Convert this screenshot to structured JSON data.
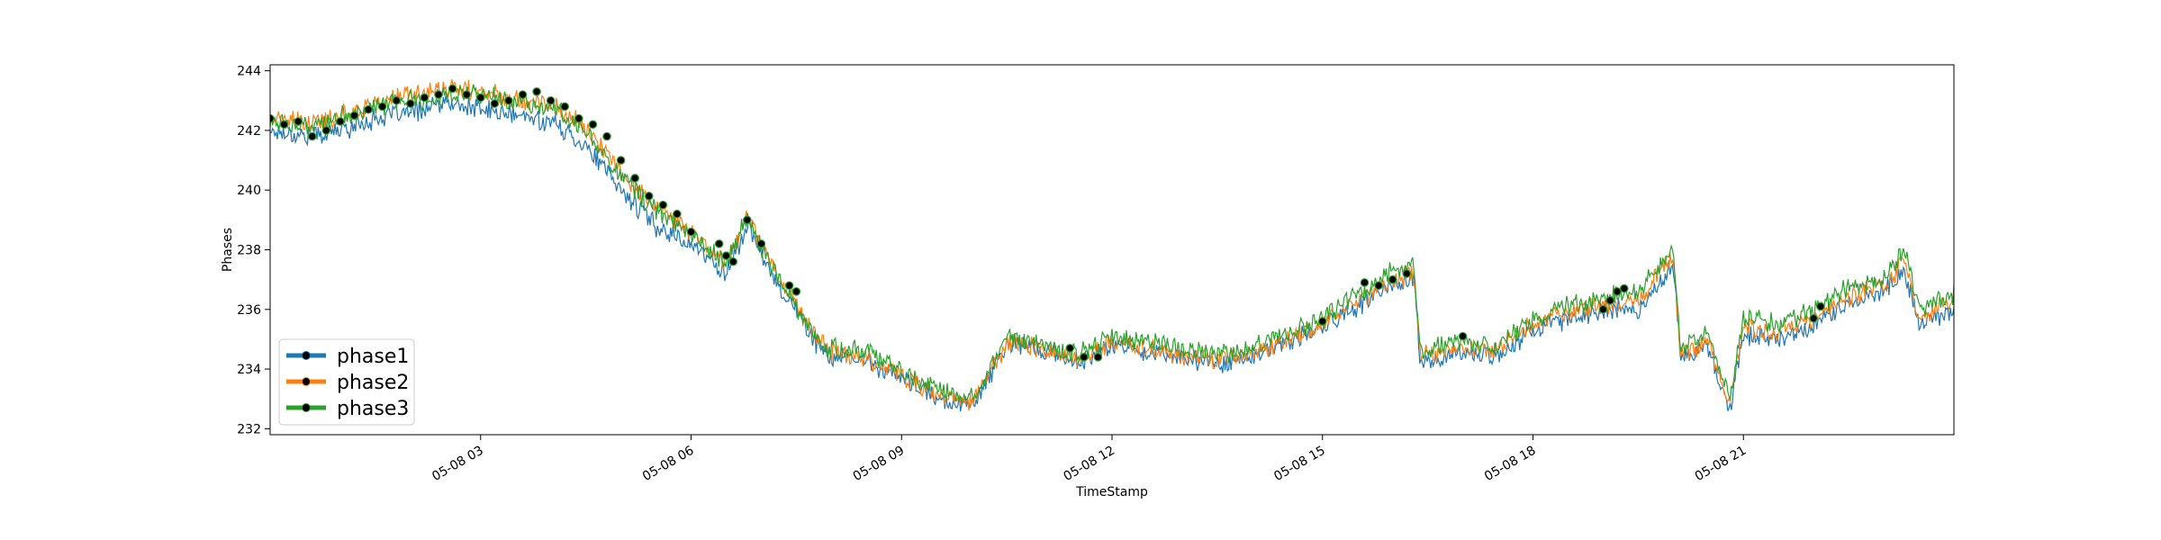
{
  "chart_data": {
    "type": "line",
    "title": "",
    "xlabel": "TimeStamp",
    "ylabel": "Phases",
    "x_start_hour": 0,
    "xlim": [
      0,
      24
    ],
    "ylim": [
      231.8,
      244.2
    ],
    "yticks": [
      232,
      234,
      236,
      238,
      240,
      242,
      244
    ],
    "xticks": [
      {
        "x": 3,
        "label": "05-08 03"
      },
      {
        "x": 6,
        "label": "05-08 06"
      },
      {
        "x": 9,
        "label": "05-08 09"
      },
      {
        "x": 12,
        "label": "05-08 12"
      },
      {
        "x": 15,
        "label": "05-08 15"
      },
      {
        "x": 18,
        "label": "05-08 18"
      },
      {
        "x": 21,
        "label": "05-08 21"
      }
    ],
    "x_units": "hours since 05-08 00:00",
    "legend_position": "lower left",
    "grid": false,
    "series": [
      {
        "name": "phase1",
        "color": "#1f77b4",
        "x": [
          0.0,
          0.3,
          0.6,
          1.0,
          1.5,
          2.0,
          2.5,
          3.0,
          3.5,
          4.0,
          4.5,
          5.0,
          5.5,
          6.0,
          6.5,
          6.8,
          7.0,
          7.3,
          7.5,
          7.8,
          8.0,
          8.5,
          9.0,
          9.5,
          10.0,
          10.5,
          10.6,
          11.0,
          11.5,
          11.8,
          12.0,
          12.5,
          13.0,
          13.5,
          14.0,
          14.5,
          15.0,
          15.5,
          16.0,
          16.3,
          16.4,
          17.0,
          17.5,
          18.0,
          18.5,
          19.0,
          19.5,
          20.0,
          20.1,
          20.5,
          20.8,
          21.0,
          21.5,
          22.0,
          22.5,
          23.0,
          23.3,
          23.5,
          24.0
        ],
        "y": [
          242.0,
          241.9,
          241.8,
          242.0,
          242.4,
          242.6,
          242.9,
          242.7,
          242.5,
          242.3,
          241.5,
          240.0,
          238.8,
          238.2,
          237.2,
          238.8,
          237.9,
          236.6,
          236.0,
          234.8,
          234.4,
          234.3,
          233.7,
          233.0,
          232.8,
          234.7,
          234.9,
          234.6,
          234.2,
          234.5,
          234.8,
          234.6,
          234.4,
          234.2,
          234.4,
          234.9,
          235.4,
          236.1,
          236.8,
          237.0,
          234.2,
          234.5,
          234.5,
          235.3,
          235.7,
          236.0,
          236.0,
          237.5,
          234.4,
          234.7,
          232.6,
          235.2,
          235.0,
          235.5,
          236.2,
          236.6,
          237.3,
          235.5,
          236.0
        ]
      },
      {
        "name": "phase2",
        "color": "#ff7f0e",
        "x": [
          0.0,
          0.3,
          0.6,
          1.0,
          1.5,
          2.0,
          2.5,
          3.0,
          3.5,
          4.0,
          4.5,
          5.0,
          5.5,
          6.0,
          6.5,
          6.8,
          7.0,
          7.3,
          7.5,
          7.8,
          8.0,
          8.5,
          9.0,
          9.5,
          10.0,
          10.5,
          10.6,
          11.0,
          11.5,
          11.8,
          12.0,
          12.5,
          13.0,
          13.5,
          14.0,
          14.5,
          15.0,
          15.5,
          16.0,
          16.3,
          16.4,
          17.0,
          17.5,
          18.0,
          18.5,
          19.0,
          19.5,
          20.0,
          20.1,
          20.5,
          20.8,
          21.0,
          21.5,
          22.0,
          22.5,
          23.0,
          23.3,
          23.5,
          24.0
        ],
        "y": [
          242.4,
          242.3,
          242.2,
          242.5,
          242.9,
          243.2,
          243.4,
          243.3,
          243.1,
          242.9,
          242.1,
          240.6,
          239.4,
          238.6,
          237.6,
          239.2,
          238.2,
          236.9,
          236.2,
          235.0,
          234.6,
          234.4,
          233.8,
          233.1,
          232.9,
          234.8,
          235.0,
          234.7,
          234.3,
          234.6,
          234.9,
          234.7,
          234.4,
          234.3,
          234.5,
          235.0,
          235.5,
          236.3,
          237.0,
          237.2,
          234.4,
          234.7,
          234.6,
          235.5,
          235.9,
          236.2,
          236.3,
          237.8,
          234.6,
          234.9,
          232.8,
          235.4,
          235.2,
          235.7,
          236.4,
          236.8,
          237.6,
          235.7,
          236.3
        ]
      },
      {
        "name": "phase3",
        "color": "#2ca02c",
        "x": [
          0.0,
          0.3,
          0.6,
          1.0,
          1.5,
          2.0,
          2.5,
          3.0,
          3.5,
          4.0,
          4.5,
          5.0,
          5.5,
          6.0,
          6.5,
          6.8,
          7.0,
          7.3,
          7.5,
          7.8,
          8.0,
          8.5,
          9.0,
          9.5,
          10.0,
          10.5,
          10.6,
          11.0,
          11.5,
          11.8,
          12.0,
          12.5,
          13.0,
          13.5,
          14.0,
          14.5,
          15.0,
          15.5,
          16.0,
          16.3,
          16.4,
          17.0,
          17.5,
          18.0,
          18.5,
          19.0,
          19.5,
          20.0,
          20.1,
          20.5,
          20.8,
          21.0,
          21.5,
          22.0,
          22.5,
          23.0,
          23.3,
          23.5,
          24.0
        ],
        "y": [
          242.3,
          242.2,
          242.1,
          242.4,
          242.8,
          243.0,
          243.2,
          243.2,
          243.0,
          242.8,
          242.0,
          240.5,
          239.3,
          238.5,
          237.5,
          239.1,
          238.1,
          236.8,
          236.1,
          234.9,
          234.7,
          234.6,
          234.0,
          233.3,
          233.1,
          235.0,
          235.1,
          234.9,
          234.5,
          234.8,
          235.1,
          234.9,
          234.7,
          234.5,
          234.7,
          235.2,
          235.7,
          236.5,
          237.3,
          237.6,
          234.6,
          234.9,
          234.8,
          235.7,
          236.1,
          236.4,
          236.6,
          238.0,
          234.8,
          235.1,
          233.0,
          235.7,
          235.5,
          236.0,
          236.7,
          237.1,
          238.0,
          236.0,
          236.5
        ]
      }
    ],
    "highlight_markers": {
      "color": "#000000",
      "x": [
        0.0,
        0.2,
        0.4,
        0.6,
        0.8,
        1.0,
        1.2,
        1.4,
        1.6,
        1.8,
        2.0,
        2.2,
        2.4,
        2.6,
        2.8,
        3.0,
        3.2,
        3.4,
        3.6,
        3.8,
        4.0,
        4.2,
        4.4,
        4.6,
        4.8,
        5.0,
        5.2,
        5.4,
        5.6,
        5.8,
        6.0,
        6.4,
        6.5,
        6.6,
        6.8,
        7.0,
        7.4,
        7.5,
        11.4,
        11.6,
        11.8,
        15.0,
        15.6,
        15.8,
        16.0,
        16.2,
        17.0,
        19.0,
        19.1,
        19.2,
        19.3,
        22.0,
        22.1
      ],
      "y": [
        242.4,
        242.2,
        242.3,
        241.8,
        242.0,
        242.3,
        242.5,
        242.7,
        242.8,
        243.0,
        242.9,
        243.1,
        243.2,
        243.4,
        243.2,
        243.1,
        242.9,
        243.0,
        243.2,
        243.3,
        243.0,
        242.8,
        242.4,
        242.2,
        241.8,
        241.0,
        240.4,
        239.8,
        239.5,
        239.2,
        238.6,
        238.2,
        237.8,
        237.6,
        239.0,
        238.2,
        236.8,
        236.6,
        234.7,
        234.4,
        234.4,
        235.6,
        236.9,
        236.8,
        237.0,
        237.2,
        235.1,
        236.0,
        236.3,
        236.6,
        236.7,
        235.7,
        236.1
      ]
    }
  }
}
